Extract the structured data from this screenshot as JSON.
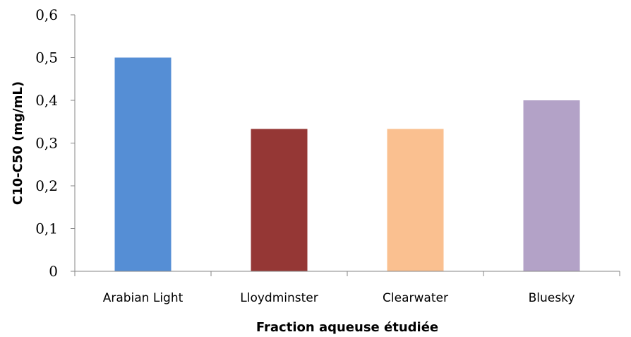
{
  "chart_data": {
    "type": "bar",
    "title": "",
    "xlabel": "Fraction aqueuse étudiée",
    "ylabel": "C10-C50 (mg/mL)",
    "categories": [
      "Arabian Light",
      "Lloydminster",
      "Clearwater",
      "Bluesky"
    ],
    "values": [
      0.5,
      0.333,
      0.333,
      0.4
    ],
    "colors": [
      "#558ED5",
      "#953735",
      "#FAC090",
      "#B3A2C7"
    ],
    "ylim": [
      0,
      0.6
    ],
    "yticks": [
      0,
      0.1,
      0.2,
      0.3,
      0.4,
      0.5,
      0.6
    ],
    "ytick_labels": [
      "0",
      "0,1",
      "0,2",
      "0,3",
      "0,4",
      "0,5",
      "0,6"
    ],
    "grid": false,
    "legend": "none"
  }
}
